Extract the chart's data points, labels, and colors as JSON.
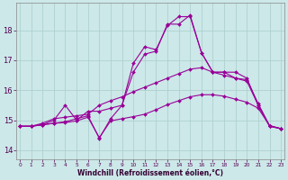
{
  "background_color": "#cce8e8",
  "grid_color": "#b8d8d8",
  "line_color": "#990099",
  "marker_color": "#990099",
  "xlabel": "Windchill (Refroidissement éolien,°C)",
  "ylabel_ticks": [
    14,
    15,
    16,
    17,
    18
  ],
  "xticks": [
    0,
    1,
    2,
    3,
    4,
    5,
    6,
    7,
    8,
    9,
    10,
    11,
    12,
    13,
    14,
    15,
    16,
    17,
    18,
    19,
    20,
    21,
    22,
    23
  ],
  "xlim": [
    -0.3,
    23.3
  ],
  "ylim": [
    13.7,
    18.9
  ],
  "line1_x": [
    0,
    1,
    2,
    3,
    4,
    5,
    6,
    7,
    8,
    9,
    10,
    11,
    12,
    13,
    14,
    15,
    16,
    17,
    18,
    19,
    20,
    21,
    22,
    23
  ],
  "line1_y": [
    14.8,
    14.8,
    14.85,
    14.9,
    14.95,
    15.05,
    15.15,
    14.4,
    15.05,
    15.5,
    16.6,
    17.2,
    17.3,
    18.2,
    18.2,
    18.5,
    17.25,
    16.6,
    16.6,
    16.6,
    16.4,
    15.5,
    14.8,
    14.72
  ],
  "line2_x": [
    0,
    1,
    2,
    3,
    4,
    5,
    6,
    7,
    8,
    9,
    10,
    11,
    12,
    13,
    14,
    15,
    16,
    17,
    18,
    19,
    20,
    21,
    22,
    23
  ],
  "line2_y": [
    14.8,
    14.8,
    14.85,
    15.0,
    15.5,
    15.0,
    15.3,
    15.3,
    15.4,
    15.5,
    16.9,
    17.45,
    17.35,
    18.15,
    18.45,
    18.45,
    17.25,
    16.6,
    16.6,
    16.4,
    16.3,
    15.5,
    14.8,
    14.72
  ],
  "line3_x": [
    0,
    1,
    2,
    3,
    4,
    5,
    6,
    7,
    8,
    9,
    10,
    11,
    12,
    13,
    14,
    15,
    16,
    17,
    18,
    19,
    20,
    21,
    22,
    23
  ],
  "line3_y": [
    14.8,
    14.8,
    14.9,
    15.05,
    15.1,
    15.15,
    15.2,
    15.5,
    15.65,
    15.78,
    15.95,
    16.1,
    16.25,
    16.4,
    16.55,
    16.7,
    16.75,
    16.6,
    16.5,
    16.4,
    16.35,
    15.55,
    14.82,
    14.72
  ],
  "line4_x": [
    0,
    1,
    2,
    3,
    4,
    5,
    6,
    7,
    8,
    9,
    10,
    11,
    12,
    13,
    14,
    15,
    16,
    17,
    18,
    19,
    20,
    21,
    22,
    23
  ],
  "line4_y": [
    14.8,
    14.8,
    14.85,
    14.9,
    14.92,
    14.98,
    15.1,
    14.42,
    14.98,
    15.05,
    15.12,
    15.2,
    15.35,
    15.52,
    15.65,
    15.78,
    15.85,
    15.85,
    15.8,
    15.7,
    15.6,
    15.4,
    14.82,
    14.72
  ]
}
